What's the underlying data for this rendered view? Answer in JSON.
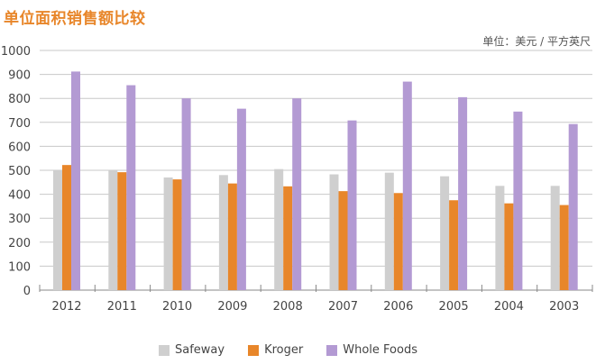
{
  "chart_data": {
    "type": "bar",
    "title": "单位面积销售额比较",
    "unit_label": "单位：美元 / 平方英尺",
    "xlabel": "",
    "ylabel": "",
    "ylim": [
      0,
      1000
    ],
    "yticks": [
      0,
      100,
      200,
      300,
      400,
      500,
      600,
      700,
      800,
      900,
      1000
    ],
    "categories": [
      "2012",
      "2011",
      "2010",
      "2009",
      "2008",
      "2007",
      "2006",
      "2005",
      "2004",
      "2003"
    ],
    "series": [
      {
        "name": "Safeway",
        "color": "#cfcfcf",
        "values": [
          500,
          500,
          470,
          480,
          505,
          483,
          490,
          475,
          435,
          435
        ]
      },
      {
        "name": "Kroger",
        "color": "#e8862a",
        "values": [
          522,
          492,
          462,
          445,
          433,
          413,
          405,
          375,
          362,
          355
        ]
      },
      {
        "name": "Whole Foods",
        "color": "#b39ad3",
        "values": [
          912,
          855,
          800,
          757,
          800,
          708,
          870,
          805,
          745,
          693
        ]
      }
    ],
    "legend_position": "bottom",
    "grid": true
  }
}
